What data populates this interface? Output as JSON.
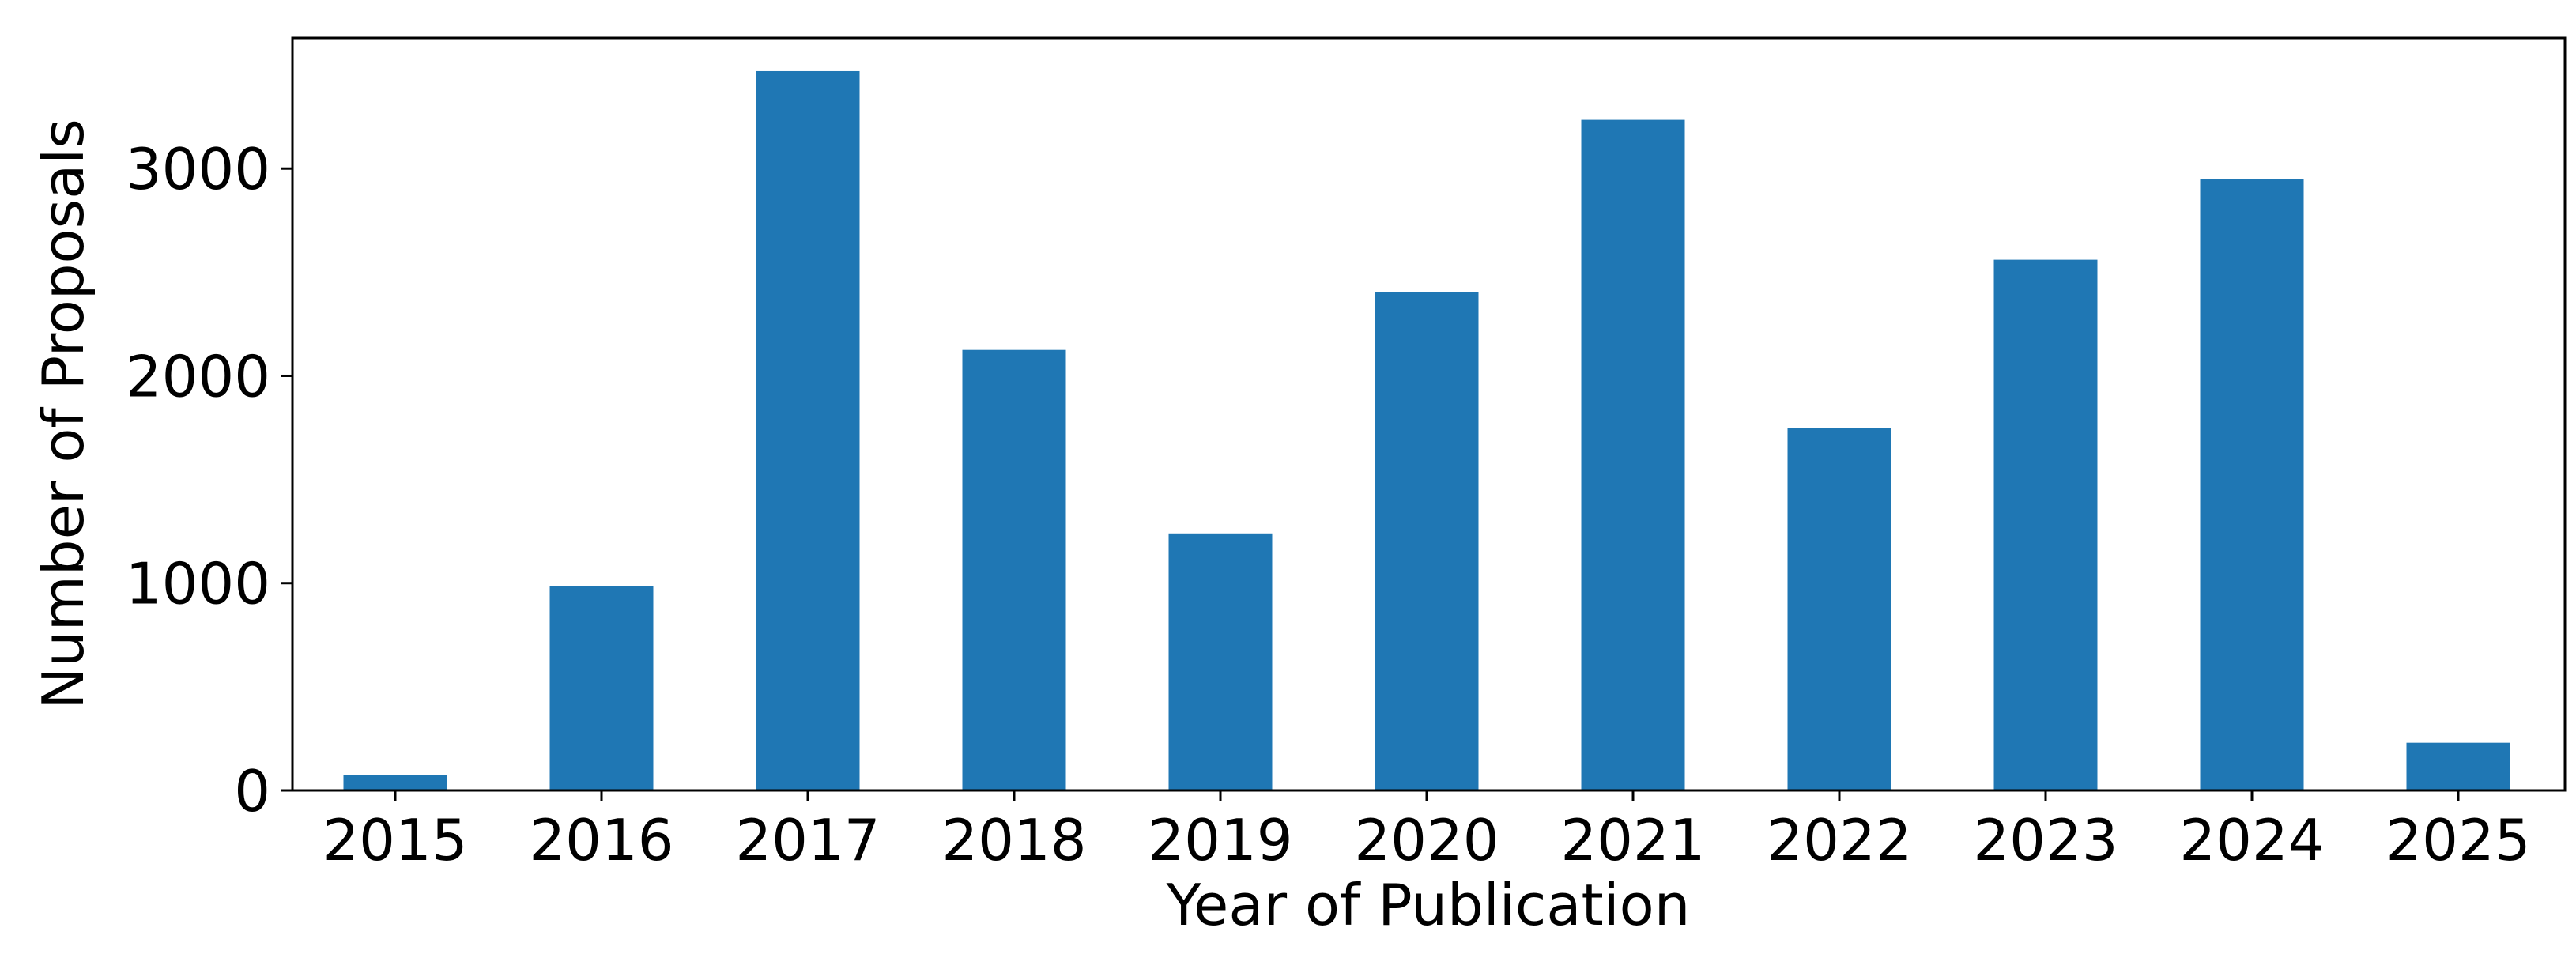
{
  "chart_data": {
    "type": "bar",
    "title": "",
    "xlabel": "Year of Publication",
    "ylabel": "Number of Proposals",
    "categories": [
      "2015",
      "2016",
      "2017",
      "2018",
      "2019",
      "2020",
      "2021",
      "2022",
      "2023",
      "2024",
      "2025"
    ],
    "values": [
      75,
      985,
      3470,
      2125,
      1240,
      2405,
      3235,
      1750,
      2560,
      2950,
      230
    ],
    "ylim": [
      0,
      3630
    ],
    "yticks": [
      "0",
      "1000",
      "2000",
      "3000"
    ],
    "grid": false,
    "legend": "none",
    "bar_color": "#1f77b4"
  }
}
